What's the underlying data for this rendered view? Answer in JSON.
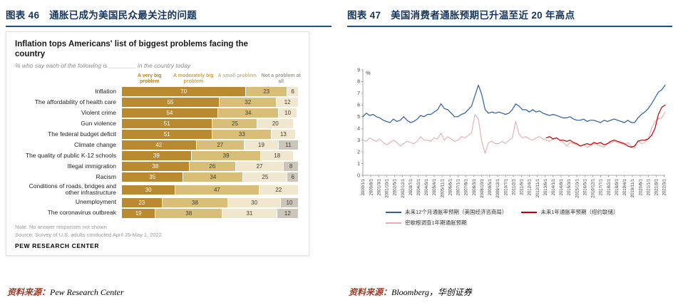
{
  "page": {
    "left": {
      "caption": "图表 46　通胀已成为美国民众最关注的问题",
      "source_prefix": "资料来源：",
      "source_text": "Pew Research Center"
    },
    "right": {
      "caption": "图表 47　美国消费者通胀预期已升温至近 20 年高点",
      "source_prefix": "资料来源：",
      "source_text": "Bloomberg，华创证券"
    }
  },
  "chart_data": [
    {
      "type": "bar",
      "orientation": "horizontal",
      "stacked": true,
      "title": "Inflation tops Americans' list of biggest problems facing the country",
      "subtitle": "% who say each of the following is ________ in the country today",
      "legend": [
        "A very big problem",
        "A moderately big problem",
        "A small problem",
        "Not a problem at all"
      ],
      "legend_text_colors": [
        "#B1832A",
        "#C8A44E",
        "#C4B896",
        "#9C9C94"
      ],
      "colors": [
        "#B98A2F",
        "#D9BE77",
        "#F0E7CE",
        "#CBC6B9"
      ],
      "categories": [
        "Inflation",
        "The affordability of health care",
        "Violent crime",
        "Gun violence",
        "The federal budget deficit",
        "Climate change",
        "The quality of public K-12 schools",
        "Illegal immigration",
        "Racism",
        "Conditions of roads, bridges and other infrastructure",
        "Unemployment",
        "The coronavirus outbreak"
      ],
      "values": [
        [
          70,
          23,
          6
        ],
        [
          55,
          32,
          12
        ],
        [
          54,
          34,
          10
        ],
        [
          51,
          25,
          20
        ],
        [
          51,
          33,
          13
        ],
        [
          42,
          27,
          19,
          11
        ],
        [
          39,
          39,
          18
        ],
        [
          38,
          26,
          27,
          8
        ],
        [
          35,
          34,
          25,
          6
        ],
        [
          30,
          47,
          22
        ],
        [
          23,
          38,
          30,
          10
        ],
        [
          19,
          38,
          31,
          12
        ]
      ],
      "xlim": [
        0,
        100
      ],
      "note": "Note: No answer responses not shown",
      "source": "Source: Survey of U.S. adults conducted April 25-May 1, 2022",
      "brand": "PEW RESEARCH CENTER"
    },
    {
      "type": "line",
      "ylabel": "%",
      "ylim": [
        0,
        9
      ],
      "yticks": [
        0,
        1,
        2,
        3,
        4,
        5,
        6,
        7,
        8,
        9
      ],
      "xlim": [
        2000,
        2022.25
      ],
      "x_tick_interval_months": 7,
      "x_tick_labels": [
        "2000/1/1",
        "2000/8/1",
        "2001/3/1",
        "2001/10/1",
        "2002/5/1",
        "2002/12/1",
        "2003/7/1",
        "2004/2/1",
        "2004/9/1",
        "2005/4/1",
        "2005/11/1",
        "2006/6/1",
        "2007/1/1",
        "2007/8/1",
        "2008/3/1",
        "2008/10/1",
        "2009/5/1",
        "2009/12/1",
        "2010/7/1",
        "2011/2/1",
        "2011/9/1",
        "2012/4/1",
        "2012/11/1",
        "2013/6/1",
        "2014/1/1",
        "2014/8/1",
        "2015/3/1",
        "2015/10/1",
        "2016/5/1",
        "2016/12/1",
        "2017/7/1",
        "2018/2/1",
        "2018/9/1",
        "2019/4/1",
        "2019/11/1",
        "2020/6/1",
        "2021/1/1",
        "2021/8/1",
        "2022/3/1"
      ],
      "draw_order": [
        2,
        0,
        1
      ],
      "legend_rows": [
        [
          0,
          1
        ],
        [
          2
        ]
      ],
      "series": [
        {
          "name": "未来12个月通胀率预期（美国经济咨商局）",
          "color": "#2B5DA9",
          "width": 1.2,
          "x_start": 2000.0,
          "x_step": 0.25,
          "values": [
            5.0,
            5.3,
            5.1,
            5.2,
            5.0,
            4.9,
            4.7,
            4.6,
            4.5,
            4.8,
            4.6,
            4.7,
            5.0,
            4.7,
            4.5,
            4.6,
            4.8,
            5.1,
            5.0,
            5.2,
            5.2,
            5.4,
            5.6,
            6.1,
            5.7,
            5.6,
            5.3,
            5.0,
            5.0,
            5.2,
            5.3,
            5.6,
            5.9,
            6.8,
            7.7,
            6.9,
            5.6,
            5.3,
            5.4,
            5.3,
            5.4,
            5.3,
            5.2,
            5.3,
            5.6,
            6.1,
            5.9,
            5.6,
            5.6,
            5.4,
            5.6,
            5.4,
            5.5,
            5.3,
            5.2,
            5.1,
            5.2,
            5.1,
            5.0,
            4.9,
            4.9,
            5.0,
            4.8,
            4.7,
            4.7,
            4.8,
            4.6,
            4.7,
            4.7,
            4.6,
            4.5,
            4.7,
            4.6,
            4.7,
            4.8,
            4.7,
            4.6,
            4.5,
            4.7,
            4.5,
            4.5,
            4.9,
            5.2,
            5.4,
            5.7,
            6.1,
            6.6,
            7.1,
            7.3,
            7.7
          ]
        },
        {
          "name": "未来1年通胀率预期（纽约联储）",
          "color": "#C00000",
          "width": 1.2,
          "x_start": 2013.5,
          "x_step": 0.25,
          "values": [
            3.2,
            3.3,
            3.1,
            3.2,
            3.0,
            3.0,
            2.9,
            3.0,
            2.8,
            2.7,
            2.5,
            2.6,
            2.7,
            2.6,
            2.8,
            2.7,
            2.8,
            2.6,
            2.7,
            2.9,
            3.0,
            2.9,
            2.8,
            2.7,
            2.5,
            2.4,
            2.5,
            2.9,
            3.0,
            3.0,
            3.1,
            3.4,
            4.0,
            5.2,
            5.8,
            6.0
          ]
        },
        {
          "name": "密歇根调查1年期通胀预期",
          "color": "#E3AEB0",
          "width": 1.1,
          "x_start": 2000.0,
          "x_step": 0.25,
          "values": [
            3.0,
            2.9,
            3.2,
            3.0,
            2.9,
            3.1,
            2.8,
            2.6,
            2.8,
            3.0,
            2.8,
            2.5,
            2.7,
            2.9,
            2.8,
            2.7,
            2.9,
            3.3,
            3.0,
            3.0,
            2.9,
            3.2,
            3.1,
            3.6,
            3.0,
            3.3,
            3.1,
            2.9,
            3.0,
            3.3,
            3.2,
            3.4,
            3.6,
            5.2,
            4.8,
            2.9,
            1.9,
            2.8,
            2.9,
            2.7,
            2.7,
            2.9,
            2.7,
            3.0,
            3.2,
            4.6,
            3.5,
            3.2,
            3.3,
            3.1,
            3.0,
            3.2,
            3.3,
            3.1,
            3.0,
            2.9,
            3.1,
            3.2,
            3.0,
            2.8,
            2.5,
            2.8,
            2.7,
            2.6,
            2.5,
            2.6,
            2.4,
            2.5,
            2.7,
            2.6,
            2.5,
            2.4,
            2.7,
            2.8,
            2.9,
            2.8,
            2.7,
            2.6,
            2.8,
            2.5,
            2.3,
            3.0,
            2.7,
            2.8,
            3.1,
            4.0,
            4.6,
            4.8,
            4.9,
            5.4
          ]
        }
      ]
    }
  ]
}
